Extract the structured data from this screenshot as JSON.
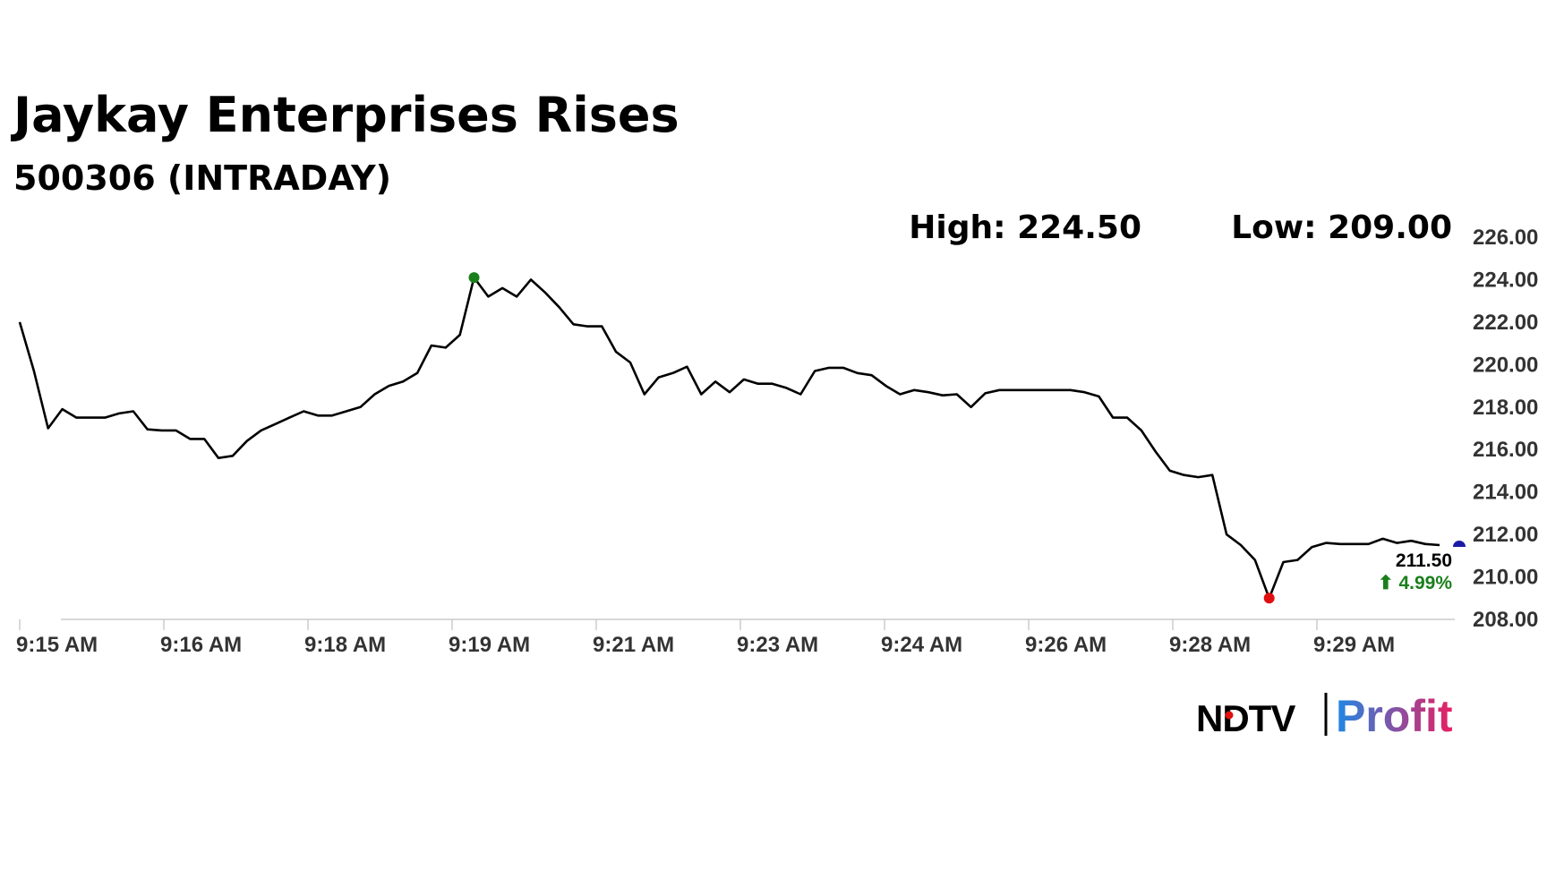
{
  "title": "Jaykay Enterprises Rises",
  "subtitle": "500306 (INTRADAY)",
  "high_label": "High: 224.50",
  "low_label": "Low: 209.00",
  "last_price": "211.50",
  "change_text": "⬆ 4.99%",
  "brand": {
    "left": "NDTV",
    "right": "Profit"
  },
  "colors": {
    "line": "#000000",
    "high_marker": "#1a7f1a",
    "low_marker": "#e01010",
    "last_marker": "#1a1aa6",
    "change": "#1a7f1a",
    "brand_blue": "#1e88e5",
    "brand_pink": "#e91e63"
  },
  "chart_data": {
    "type": "line",
    "x_ticks": [
      "9:15 AM",
      "9:16 AM",
      "9:18 AM",
      "9:19 AM",
      "9:21 AM",
      "9:23 AM",
      "9:24 AM",
      "9:26 AM",
      "9:28 AM",
      "9:29 AM"
    ],
    "y_ticks": [
      "226.00",
      "224.00",
      "222.00",
      "220.00",
      "218.00",
      "216.00",
      "214.00",
      "212.00",
      "210.00",
      "208.00"
    ],
    "ylim": [
      208,
      226
    ],
    "high_index": 32,
    "low_index": 88,
    "values": [
      222.0,
      219.7,
      217.0,
      217.9,
      217.5,
      217.5,
      217.5,
      217.7,
      217.8,
      216.95,
      216.9,
      216.9,
      216.5,
      216.5,
      215.6,
      215.7,
      216.4,
      216.9,
      217.2,
      217.5,
      217.8,
      217.6,
      217.6,
      217.8,
      218.0,
      218.6,
      219.0,
      219.2,
      219.6,
      220.9,
      220.8,
      221.4,
      224.1,
      223.2,
      223.6,
      223.2,
      224.0,
      223.4,
      222.7,
      221.9,
      221.8,
      221.8,
      220.6,
      220.1,
      218.6,
      219.4,
      219.6,
      219.9,
      218.6,
      219.2,
      218.7,
      219.3,
      219.1,
      219.1,
      218.9,
      218.6,
      219.7,
      219.85,
      219.85,
      219.6,
      219.5,
      219.0,
      218.6,
      218.8,
      218.7,
      218.55,
      218.6,
      218.0,
      218.65,
      218.8,
      218.8,
      218.8,
      218.8,
      218.8,
      218.8,
      218.7,
      218.5,
      217.5,
      217.5,
      216.9,
      215.9,
      215.0,
      214.8,
      214.7,
      214.8,
      212.0,
      211.5,
      210.8,
      209.0,
      210.7,
      210.8,
      211.4,
      211.6,
      211.55,
      211.55,
      211.55,
      211.8,
      211.6,
      211.7,
      211.55,
      211.5
    ]
  }
}
